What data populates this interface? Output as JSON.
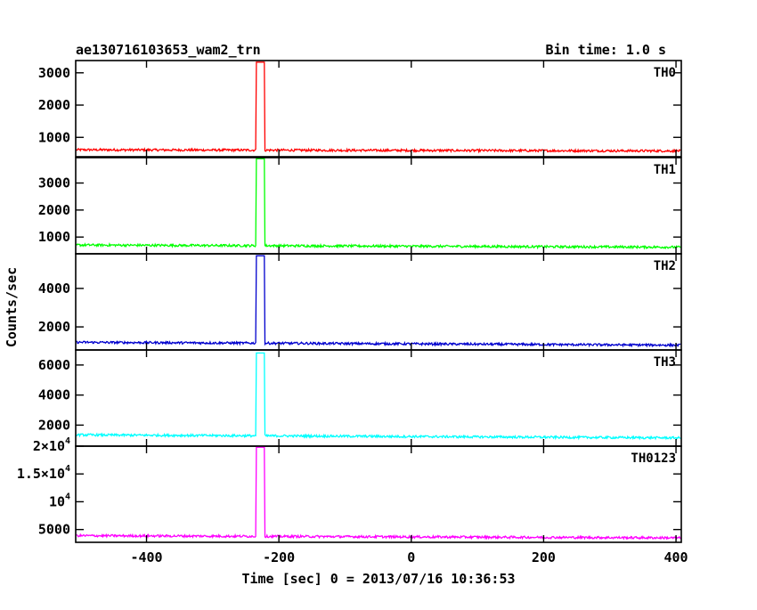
{
  "chart_data": {
    "type": "line",
    "title": "ae130716103653_wam2_trn",
    "bin_time": "Bin time: 1.0 s",
    "xlabel": "Time [sec] 0 = 2013/07/16 10:36:53",
    "ylabel": "Counts/sec",
    "xlim": [
      -507,
      408
    ],
    "x_ticks": [
      -400,
      -200,
      0,
      200,
      400
    ],
    "spike_x": [
      -234,
      -222
    ],
    "grid": false,
    "panels": [
      {
        "name": "TH0",
        "color": "#ff0000",
        "ylim": [
          400,
          3380
        ],
        "y_ticks": [
          {
            "value": 1000,
            "label": "1000"
          },
          {
            "value": 2000,
            "label": "2000"
          },
          {
            "value": 3000,
            "label": "3000"
          }
        ],
        "baseline_start": 615,
        "baseline_end": 580,
        "peak": 3330
      },
      {
        "name": "TH1",
        "color": "#00ff00",
        "ylim": [
          380,
          3940
        ],
        "y_ticks": [
          {
            "value": 1000,
            "label": "1000"
          },
          {
            "value": 2000,
            "label": "2000"
          },
          {
            "value": 3000,
            "label": "3000"
          }
        ],
        "baseline_start": 705,
        "baseline_end": 625,
        "peak": 3900
      },
      {
        "name": "TH2",
        "color": "#0000cd",
        "ylim": [
          800,
          5800
        ],
        "y_ticks": [
          {
            "value": 2000,
            "label": "2000"
          },
          {
            "value": 4000,
            "label": "4000"
          }
        ],
        "baseline_start": 1200,
        "baseline_end": 1050,
        "peak": 5700
      },
      {
        "name": "TH3",
        "color": "#00ffff",
        "ylim": [
          600,
          7000
        ],
        "y_ticks": [
          {
            "value": 2000,
            "label": "2000"
          },
          {
            "value": 4000,
            "label": "4000"
          },
          {
            "value": 6000,
            "label": "6000"
          }
        ],
        "baseline_start": 1350,
        "baseline_end": 1150,
        "peak": 6800
      },
      {
        "name": "TH0123",
        "color": "#ff00ff",
        "ylim": [
          2700,
          20000
        ],
        "y_ticks": [
          {
            "value": 5000,
            "label": "5000",
            "sup": ""
          },
          {
            "value": 10000,
            "label": "10",
            "sup": "4"
          },
          {
            "value": 15000,
            "label": "1.5×10",
            "sup": "4"
          },
          {
            "value": 20000,
            "label": "2×10",
            "sup": "4"
          }
        ],
        "baseline_start": 3900,
        "baseline_end": 3500,
        "peak": 19800
      }
    ]
  }
}
